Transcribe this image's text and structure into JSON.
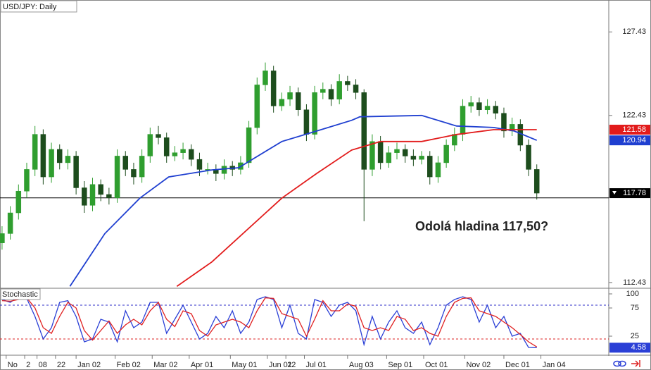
{
  "chart_data": [
    {
      "type": "candlestick",
      "title": "USD/JPY: Daily",
      "xlim": [
        -1,
        295
      ],
      "ylim": [
        112.13,
        129.34
      ],
      "yticks": [
        112.43,
        122.43,
        127.43
      ],
      "up_color": "#2f9e2f",
      "down_color": "#1d4d1d",
      "x": [
        0,
        4,
        8,
        12,
        16,
        20,
        24,
        28,
        32,
        36,
        40,
        44,
        48,
        52,
        56,
        60,
        64,
        68,
        72,
        76,
        80,
        84,
        88,
        92,
        96,
        100,
        104,
        108,
        112,
        116,
        120,
        124,
        128,
        132,
        136,
        140,
        144,
        148,
        152,
        156,
        160,
        164,
        168,
        172,
        176,
        180,
        184,
        188,
        192,
        196,
        200,
        204,
        208,
        212,
        216,
        220,
        224,
        228,
        232,
        236,
        240,
        244,
        248,
        252,
        256,
        260
      ],
      "open": [
        114.8,
        115.36,
        116.6,
        117.9,
        119.2,
        121.3,
        118.75,
        120.4,
        119.6,
        120.0,
        118.1,
        117.05,
        118.3,
        117.7,
        117.5,
        120.0,
        119.2,
        118.75,
        120.0,
        121.3,
        121.1,
        120.0,
        120.2,
        120.4,
        119.8,
        119.2,
        119.2,
        118.95,
        119.4,
        119.2,
        119.6,
        121.7,
        124.26,
        125.1,
        123.0,
        123.4,
        123.8,
        122.77,
        121.3,
        123.8,
        124.0,
        123.4,
        124.47,
        124.26,
        123.8,
        119.2,
        120.87,
        119.6,
        120.2,
        120.4,
        120.0,
        119.8,
        120.0,
        118.75,
        119.6,
        120.65,
        121.3,
        122.99,
        123.2,
        122.77,
        122.99,
        122.56,
        121.5,
        121.9,
        120.65,
        119.2
      ],
      "high": [
        115.8,
        117.0,
        118.3,
        119.6,
        121.8,
        121.6,
        120.8,
        120.7,
        120.4,
        120.3,
        118.5,
        118.7,
        118.6,
        118.1,
        120.4,
        120.3,
        119.6,
        120.4,
        121.7,
        121.8,
        121.4,
        120.6,
        120.8,
        120.7,
        120.2,
        119.6,
        119.5,
        119.8,
        119.7,
        120.0,
        122.1,
        124.7,
        125.6,
        125.4,
        123.8,
        124.2,
        124.1,
        123.1,
        124.2,
        124.4,
        124.3,
        124.9,
        124.8,
        124.6,
        124.0,
        121.3,
        121.2,
        120.6,
        120.8,
        120.7,
        120.4,
        120.3,
        120.3,
        120.0,
        121.0,
        121.7,
        123.4,
        123.6,
        123.5,
        123.4,
        123.3,
        122.9,
        122.3,
        122.2,
        121.0,
        119.5
      ],
      "low": [
        114.4,
        115.0,
        116.2,
        117.5,
        118.8,
        118.3,
        118.4,
        119.2,
        119.2,
        117.7,
        116.6,
        116.7,
        117.3,
        117.1,
        117.2,
        118.8,
        118.3,
        118.4,
        119.6,
        120.7,
        119.6,
        119.7,
        119.8,
        119.4,
        118.8,
        118.9,
        118.5,
        118.6,
        118.8,
        118.9,
        119.3,
        121.3,
        123.9,
        122.6,
        122.7,
        123.0,
        122.4,
        120.9,
        121.0,
        123.4,
        123.0,
        123.1,
        123.9,
        123.4,
        116.1,
        118.8,
        119.2,
        119.3,
        119.8,
        119.6,
        119.4,
        119.5,
        118.3,
        118.4,
        119.3,
        120.3,
        120.9,
        122.6,
        122.4,
        122.5,
        122.2,
        121.1,
        121.2,
        120.3,
        118.8,
        117.4
      ],
      "close": [
        115.36,
        116.6,
        117.9,
        119.2,
        121.3,
        118.75,
        120.4,
        119.6,
        120.0,
        118.1,
        117.05,
        118.3,
        117.7,
        117.5,
        120.0,
        119.2,
        118.75,
        120.0,
        121.3,
        121.1,
        120.0,
        120.2,
        120.4,
        119.8,
        119.2,
        119.2,
        118.95,
        119.4,
        119.2,
        119.6,
        121.7,
        124.26,
        125.1,
        123.0,
        123.4,
        123.8,
        122.77,
        121.3,
        123.8,
        124.0,
        123.4,
        124.47,
        124.26,
        123.8,
        119.2,
        120.87,
        119.6,
        120.2,
        120.4,
        120.0,
        119.8,
        120.0,
        118.75,
        119.6,
        120.65,
        121.3,
        122.99,
        123.2,
        122.77,
        122.99,
        122.56,
        121.5,
        121.9,
        120.65,
        119.2,
        117.78
      ],
      "series": [
        {
          "color": "#1f3fd0",
          "x": [
            33,
            50,
            67,
            81,
            102,
            115,
            136,
            153,
            170,
            174,
            204,
            221,
            239,
            249,
            260
          ],
          "values": [
            112.2,
            115.36,
            117.48,
            118.75,
            119.17,
            119.3,
            120.87,
            121.5,
            122.14,
            122.35,
            122.43,
            121.8,
            121.71,
            121.5,
            120.94
          ]
        },
        {
          "color": "#e21b1b",
          "x": [
            85,
            102,
            136,
            153,
            170,
            184,
            204,
            221,
            239,
            260
          ],
          "values": [
            112.2,
            113.66,
            117.48,
            118.96,
            120.36,
            120.87,
            120.87,
            121.29,
            121.58,
            121.58
          ]
        }
      ],
      "hline": 117.5,
      "annotation": "Odolá hladina 117,50?"
    },
    {
      "type": "line",
      "title": "Stochastic",
      "xlim": [
        -1,
        295
      ],
      "ylim": [
        -7.5,
        108.75
      ],
      "yticks": [
        25,
        75,
        100
      ],
      "levels": [
        {
          "value": 80,
          "color": "#2f2fc8"
        },
        {
          "value": 20,
          "color": "#dd2222"
        }
      ],
      "x": [
        0,
        4,
        8,
        12,
        16,
        20,
        24,
        28,
        32,
        36,
        40,
        44,
        48,
        52,
        56,
        60,
        64,
        68,
        72,
        76,
        80,
        84,
        88,
        92,
        96,
        100,
        104,
        108,
        112,
        116,
        120,
        124,
        128,
        132,
        136,
        140,
        144,
        148,
        152,
        156,
        160,
        164,
        168,
        172,
        176,
        180,
        184,
        188,
        192,
        196,
        200,
        204,
        208,
        212,
        216,
        220,
        224,
        228,
        232,
        236,
        240,
        244,
        248,
        252,
        256,
        260
      ],
      "series": [
        {
          "color": "#2a3fd6",
          "values": [
            90,
            85,
            95,
            92,
            60,
            20,
            40,
            85,
            88,
            60,
            15,
            20,
            55,
            50,
            15,
            70,
            40,
            50,
            85,
            85,
            30,
            55,
            80,
            50,
            20,
            30,
            60,
            40,
            70,
            30,
            50,
            90,
            95,
            90,
            40,
            80,
            30,
            20,
            90,
            85,
            60,
            80,
            85,
            70,
            10,
            60,
            20,
            50,
            70,
            40,
            30,
            50,
            10,
            40,
            80,
            90,
            95,
            90,
            50,
            80,
            40,
            60,
            25,
            30,
            5,
            4.58
          ]
        },
        {
          "color": "#e02020",
          "values": [
            88,
            87,
            90,
            93,
            75,
            40,
            30,
            60,
            85,
            75,
            35,
            18,
            35,
            52,
            30,
            45,
            55,
            45,
            70,
            85,
            55,
            42,
            70,
            65,
            35,
            25,
            45,
            50,
            55,
            50,
            40,
            70,
            93,
            92,
            65,
            60,
            55,
            25,
            55,
            88,
            70,
            70,
            82,
            78,
            40,
            35,
            40,
            35,
            60,
            55,
            35,
            40,
            30,
            25,
            60,
            85,
            92,
            93,
            70,
            65,
            60,
            50,
            40,
            28,
            15,
            6
          ]
        }
      ],
      "xticks": [
        {
          "value": 2,
          "label": "No"
        },
        {
          "value": 11,
          "label": "2"
        },
        {
          "value": 17,
          "label": "08"
        },
        {
          "value": 26,
          "label": "22"
        },
        {
          "value": 36,
          "label": "Jan 02"
        },
        {
          "value": 55,
          "label": "Feb 02"
        },
        {
          "value": 73,
          "label": "Mar 02"
        },
        {
          "value": 91,
          "label": "Apr 01"
        },
        {
          "value": 111,
          "label": "May 01"
        },
        {
          "value": 129,
          "label": "Jun 01"
        },
        {
          "value": 138,
          "label": "22"
        },
        {
          "value": 147,
          "label": "Jul 01"
        },
        {
          "value": 168,
          "label": "Aug 03"
        },
        {
          "value": 187,
          "label": "Sep 01"
        },
        {
          "value": 205,
          "label": "Oct 01"
        },
        {
          "value": 225,
          "label": "Nov 02"
        },
        {
          "value": 244,
          "label": "Dec 01"
        },
        {
          "value": 262,
          "label": "Jan 04"
        }
      ]
    }
  ]
}
